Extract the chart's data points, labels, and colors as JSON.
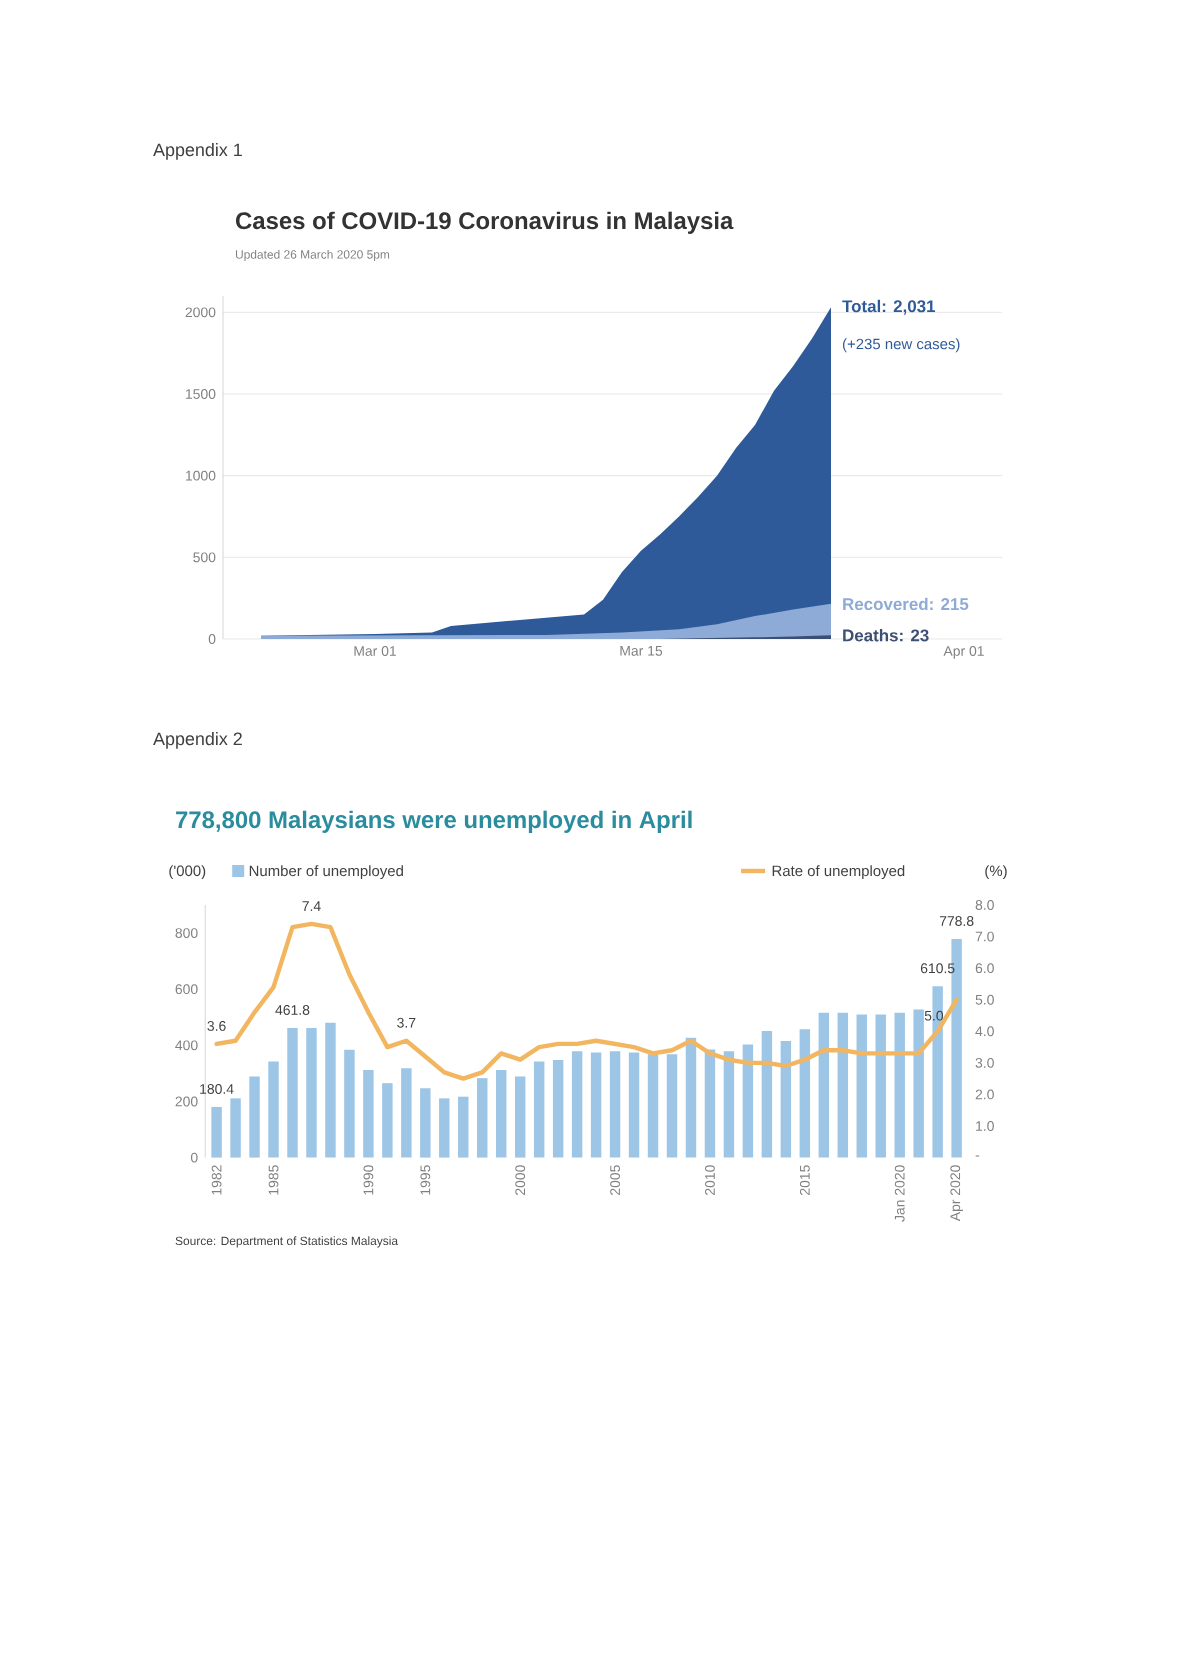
{
  "chart_data": [
    {
      "type": "area",
      "title": "Cases of COVID-19 Coronavirus in Malaysia",
      "subtitle": "Updated 26 March 2020 5pm",
      "annotations": [
        "Appendix 1",
        {
          "text": "(+235 new cases)",
          "x": "2020-03-25",
          "y": 2031
        }
      ],
      "series": [
        {
          "name": "Total: 2,031",
          "color": "#2e5a99",
          "x": [
            "2020-02-24",
            "2020-03-01",
            "2020-03-04",
            "2020-03-05",
            "2020-03-10",
            "2020-03-12",
            "2020-03-13",
            "2020-03-14",
            "2020-03-15",
            "2020-03-16",
            "2020-03-17",
            "2020-03-18",
            "2020-03-19",
            "2020-03-20",
            "2020-03-21",
            "2020-03-22",
            "2020-03-23",
            "2020-03-24",
            "2020-03-25"
          ],
          "values": [
            20,
            30,
            40,
            80,
            130,
            150,
            240,
            410,
            540,
            640,
            750,
            870,
            1000,
            1170,
            1310,
            1520,
            1670,
            1840,
            2031
          ]
        },
        {
          "name": "Recovered: 215",
          "color": "#8eaad6",
          "x": [
            "2020-02-24",
            "2020-03-10",
            "2020-03-14",
            "2020-03-17",
            "2020-03-19",
            "2020-03-21",
            "2020-03-23",
            "2020-03-25"
          ],
          "values": [
            20,
            25,
            40,
            60,
            90,
            140,
            180,
            215
          ]
        },
        {
          "name": "Deaths: 23",
          "color": "#3d4f72",
          "x": [
            "2020-03-16",
            "2020-03-18",
            "2020-03-21",
            "2020-03-23",
            "2020-03-25"
          ],
          "values": [
            0,
            5,
            10,
            15,
            23
          ]
        }
      ],
      "xlim": [
        "2020-02-22",
        "2020-04-03"
      ],
      "xticks": [
        {
          "value": "2020-03-01",
          "label": "Mar 01"
        },
        {
          "value": "2020-03-15",
          "label": "Mar 15"
        },
        {
          "value": "2020-04-01",
          "label": "Apr 01"
        }
      ],
      "ylim": [
        0,
        2100
      ],
      "yticks": [
        0,
        500,
        1000,
        1500,
        2000
      ],
      "grid": "y"
    },
    {
      "type": "bar",
      "title": "778,800 Malaysians were unemployed in April",
      "ylabel": "('000)",
      "y2label": "(%)",
      "annotations": [
        "Appendix 2",
        "Source: Department of Statistics Malaysia"
      ],
      "categories": [
        "1982",
        null,
        null,
        "1985",
        null,
        null,
        null,
        null,
        "1990",
        null,
        null,
        "1995",
        null,
        null,
        null,
        null,
        "2000",
        null,
        null,
        null,
        null,
        "2005",
        null,
        null,
        null,
        null,
        "2010",
        null,
        null,
        null,
        null,
        "2015",
        null,
        null,
        null,
        null,
        "Jan 2020",
        null,
        null,
        "Apr 2020"
      ],
      "series": [
        {
          "name": "Number of unemployed",
          "type": "bar",
          "color": "#9cc5e6",
          "values": [
            180.4,
            211,
            289,
            342,
            461.8,
            462,
            480,
            384,
            312,
            265,
            318,
            247,
            211,
            217,
            283,
            312,
            289,
            342,
            348,
            379,
            374,
            379,
            374,
            368,
            368,
            427,
            385,
            379,
            403,
            451,
            415,
            457,
            516,
            516,
            510,
            510,
            516,
            528,
            610.5,
            778.8
          ],
          "value_labels": [
            "180.4",
            null,
            null,
            null,
            "461.8",
            null,
            null,
            null,
            null,
            null,
            null,
            null,
            null,
            null,
            null,
            null,
            null,
            null,
            null,
            null,
            null,
            null,
            null,
            null,
            null,
            null,
            null,
            null,
            null,
            null,
            null,
            null,
            null,
            null,
            null,
            null,
            null,
            null,
            "610.5",
            "778.8"
          ]
        },
        {
          "name": "Rate of unemployed",
          "type": "line",
          "axis": "y2",
          "color": "#f2b661",
          "values": [
            3.6,
            3.7,
            4.6,
            5.4,
            7.3,
            7.4,
            7.3,
            5.8,
            4.6,
            3.5,
            3.7,
            3.2,
            2.7,
            2.5,
            2.7,
            3.3,
            3.1,
            3.5,
            3.6,
            3.6,
            3.7,
            3.6,
            3.5,
            3.3,
            3.4,
            3.7,
            3.3,
            3.1,
            3.0,
            3.0,
            2.9,
            3.1,
            3.4,
            3.4,
            3.3,
            3.3,
            3.3,
            3.3,
            4.0,
            5.0
          ],
          "value_labels": [
            "3.6",
            null,
            null,
            null,
            null,
            "7.4",
            null,
            null,
            null,
            null,
            "3.7",
            null,
            null,
            null,
            null,
            null,
            null,
            null,
            null,
            null,
            null,
            null,
            null,
            null,
            null,
            null,
            null,
            null,
            null,
            null,
            null,
            null,
            null,
            null,
            null,
            null,
            null,
            null,
            null,
            "5.0"
          ]
        }
      ],
      "ylim": [
        0,
        900
      ],
      "yticks": [
        0,
        200,
        400,
        600,
        800
      ],
      "y2lim": [
        0,
        8
      ],
      "y2ticks": [
        {
          "value": 0,
          "label": "-"
        },
        {
          "value": 1,
          "label": "1.0"
        },
        {
          "value": 2,
          "label": "2.0"
        },
        {
          "value": 3,
          "label": "3.0"
        },
        {
          "value": 4,
          "label": "4.0"
        },
        {
          "value": 5,
          "label": "5.0"
        },
        {
          "value": 6,
          "label": "6.0"
        },
        {
          "value": 7,
          "label": "7.0"
        },
        {
          "value": 8,
          "label": "8.0"
        }
      ],
      "legend": "top"
    }
  ]
}
